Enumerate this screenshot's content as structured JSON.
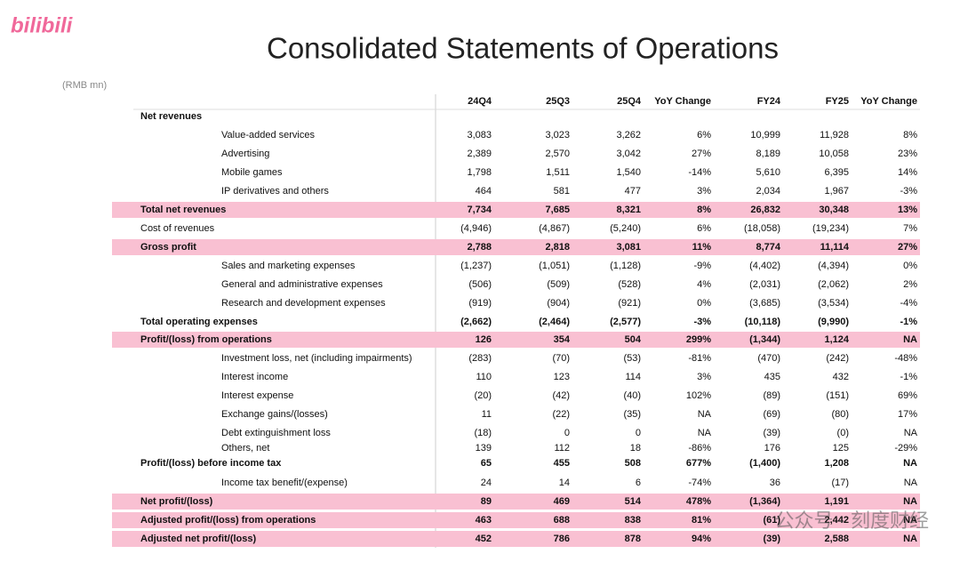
{
  "header": {
    "logo": "bilibili",
    "title": "Consolidated Statements of Operations",
    "unit": "(RMB mn)"
  },
  "table": {
    "columns": [
      "24Q4",
      "25Q3",
      "25Q4",
      "YoY Change",
      "FY24",
      "FY25",
      "YoY Change"
    ],
    "rows": [
      {
        "label": "Net revenues",
        "bold": true,
        "indent": false,
        "highlight": false,
        "cells": []
      },
      {
        "label": "Value-added services",
        "bold": false,
        "indent": true,
        "highlight": false,
        "cells": [
          "3,083",
          "3,023",
          "3,262",
          "6%",
          "10,999",
          "11,928",
          "8%"
        ]
      },
      {
        "label": "Advertising",
        "bold": false,
        "indent": true,
        "highlight": false,
        "cells": [
          "2,389",
          "2,570",
          "3,042",
          "27%",
          "8,189",
          "10,058",
          "23%"
        ]
      },
      {
        "label": "Mobile games",
        "bold": false,
        "indent": true,
        "highlight": false,
        "cells": [
          "1,798",
          "1,511",
          "1,540",
          "-14%",
          "5,610",
          "6,395",
          "14%"
        ]
      },
      {
        "label": "IP derivatives and others",
        "bold": false,
        "indent": true,
        "highlight": false,
        "cells": [
          "464",
          "581",
          "477",
          "3%",
          "2,034",
          "1,967",
          "-3%"
        ]
      },
      {
        "label": "Total net revenues",
        "bold": true,
        "indent": false,
        "highlight": true,
        "cells": [
          "7,734",
          "7,685",
          "8,321",
          "8%",
          "26,832",
          "30,348",
          "13%"
        ]
      },
      {
        "label": "Cost of revenues",
        "bold": false,
        "indent": false,
        "highlight": false,
        "cells": [
          "(4,946)",
          "(4,867)",
          "(5,240)",
          "6%",
          "(18,058)",
          "(19,234)",
          "7%"
        ]
      },
      {
        "label": "Gross profit",
        "bold": true,
        "indent": false,
        "highlight": true,
        "cells": [
          "2,788",
          "2,818",
          "3,081",
          "11%",
          "8,774",
          "11,114",
          "27%"
        ]
      },
      {
        "label": "Sales and marketing expenses",
        "bold": false,
        "indent": true,
        "highlight": false,
        "cells": [
          "(1,237)",
          "(1,051)",
          "(1,128)",
          "-9%",
          "(4,402)",
          "(4,394)",
          "0%"
        ]
      },
      {
        "label": "General and administrative expenses",
        "bold": false,
        "indent": true,
        "highlight": false,
        "cells": [
          "(506)",
          "(509)",
          "(528)",
          "4%",
          "(2,031)",
          "(2,062)",
          "2%"
        ]
      },
      {
        "label": "Research and development expenses",
        "bold": false,
        "indent": true,
        "highlight": false,
        "cells": [
          "(919)",
          "(904)",
          "(921)",
          "0%",
          "(3,685)",
          "(3,534)",
          "-4%"
        ]
      },
      {
        "label": "Total operating expenses",
        "bold": true,
        "indent": false,
        "highlight": false,
        "cells": [
          "(2,662)",
          "(2,464)",
          "(2,577)",
          "-3%",
          "(10,118)",
          "(9,990)",
          "-1%"
        ]
      },
      {
        "label": "Profit/(loss) from operations",
        "bold": true,
        "indent": false,
        "highlight": true,
        "cells": [
          "126",
          "354",
          "504",
          "299%",
          "(1,344)",
          "1,124",
          "NA"
        ]
      },
      {
        "label": "Investment loss, net (including impairments)",
        "bold": false,
        "indent": true,
        "highlight": false,
        "cells": [
          "(283)",
          "(70)",
          "(53)",
          "-81%",
          "(470)",
          "(242)",
          "-48%"
        ]
      },
      {
        "label": "Interest income",
        "bold": false,
        "indent": true,
        "highlight": false,
        "cells": [
          "110",
          "123",
          "114",
          "3%",
          "435",
          "432",
          "-1%"
        ]
      },
      {
        "label": "Interest expense",
        "bold": false,
        "indent": true,
        "highlight": false,
        "cells": [
          "(20)",
          "(42)",
          "(40)",
          "102%",
          "(89)",
          "(151)",
          "69%"
        ]
      },
      {
        "label": "Exchange gains/(losses)",
        "bold": false,
        "indent": true,
        "highlight": false,
        "cells": [
          "11",
          "(22)",
          "(35)",
          "NA",
          "(69)",
          "(80)",
          "17%"
        ]
      },
      {
        "label": "Debt extinguishment loss",
        "bold": false,
        "indent": true,
        "highlight": false,
        "cells": [
          "(18)",
          "0",
          "0",
          "NA",
          "(39)",
          "(0)",
          "NA"
        ]
      },
      {
        "label": "Others, net",
        "bold": false,
        "indent": true,
        "highlight": false,
        "cells": [
          "139",
          "112",
          "18",
          "-86%",
          "176",
          "125",
          "-29%"
        ]
      },
      {
        "label": "Profit/(loss) before income tax",
        "bold": true,
        "indent": false,
        "highlight": false,
        "cells": [
          "65",
          "455",
          "508",
          "677%",
          "(1,400)",
          "1,208",
          "NA"
        ]
      },
      {
        "label": "Income tax benefit/(expense)",
        "bold": false,
        "indent": true,
        "highlight": false,
        "cells": [
          "24",
          "14",
          "6",
          "-74%",
          "36",
          "(17)",
          "NA"
        ]
      },
      {
        "label": "Net profit/(loss)",
        "bold": true,
        "indent": false,
        "highlight": true,
        "cells": [
          "89",
          "469",
          "514",
          "478%",
          "(1,364)",
          "1,191",
          "NA"
        ]
      },
      {
        "label": "Adjusted profit/(loss) from operations",
        "bold": true,
        "indent": false,
        "highlight": true,
        "cells": [
          "463",
          "688",
          "838",
          "81%",
          "(61)",
          "2,442",
          "NA"
        ]
      },
      {
        "label": "Adjusted net profit/(loss)",
        "bold": true,
        "indent": false,
        "highlight": true,
        "cells": [
          "452",
          "786",
          "878",
          "94%",
          "(39)",
          "2,588",
          "NA"
        ]
      }
    ]
  },
  "watermark": "公众号 · 刻度财经"
}
